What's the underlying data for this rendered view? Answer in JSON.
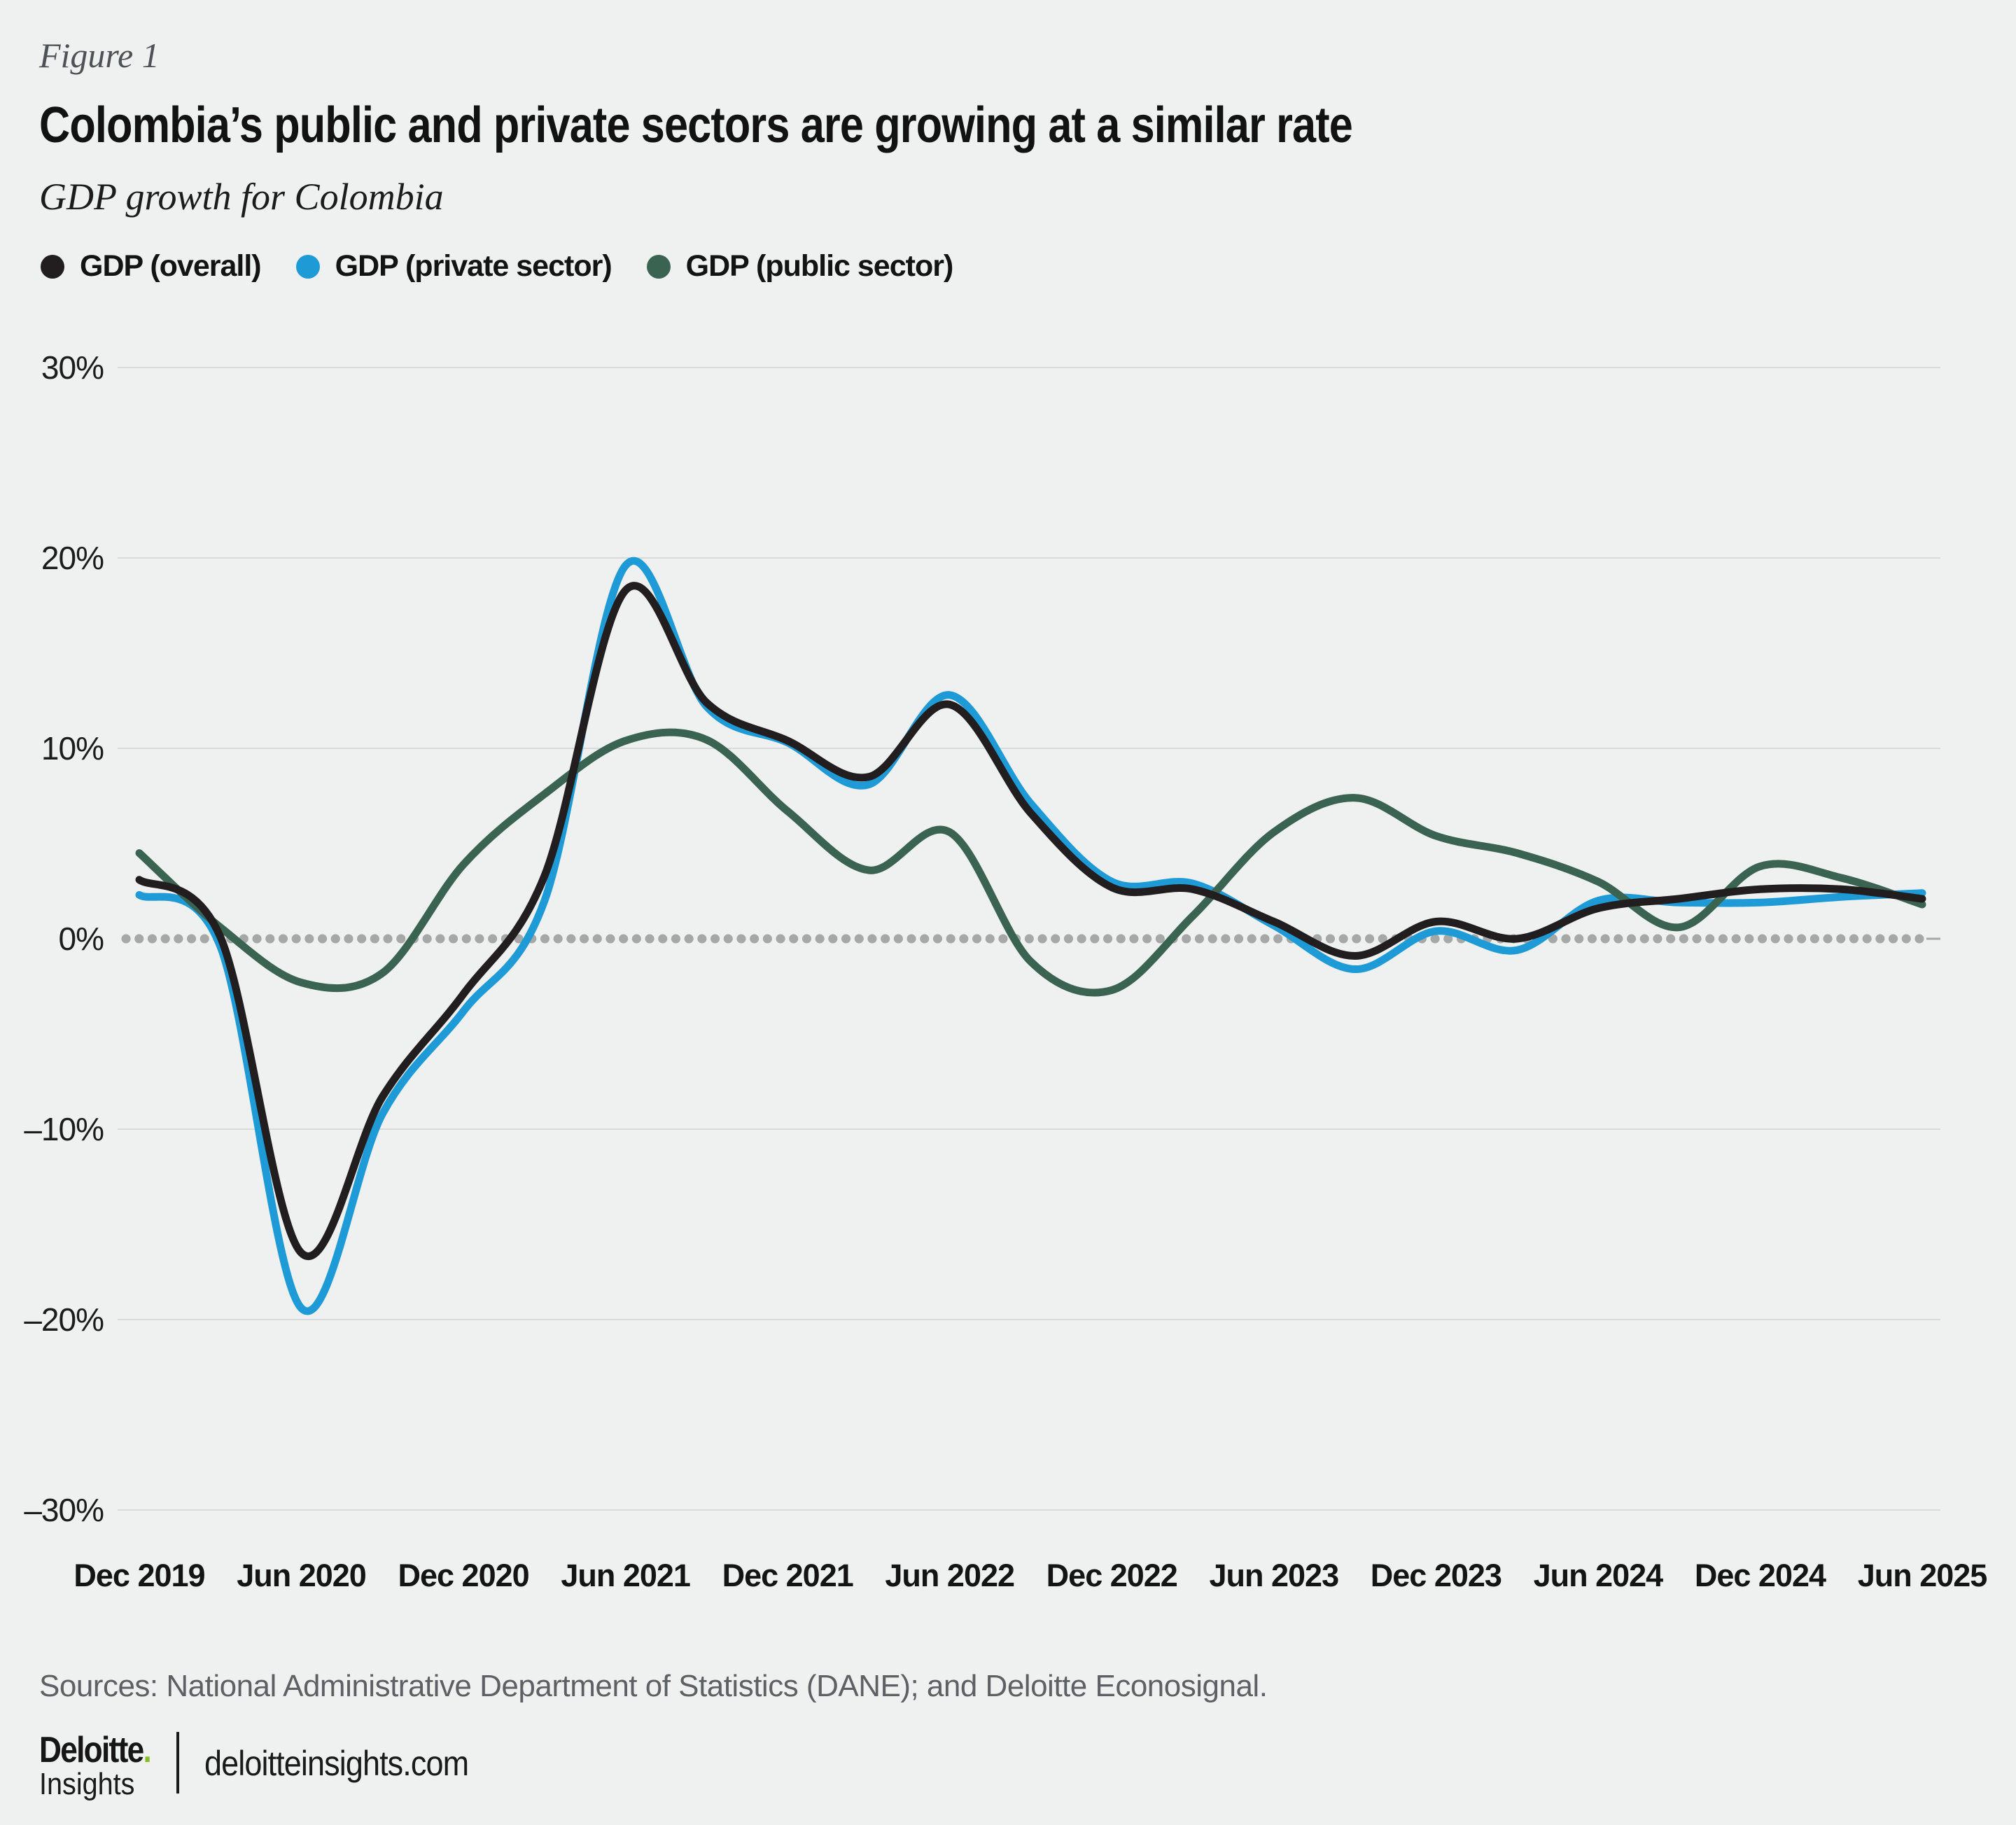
{
  "figure_label": "Figure 1",
  "title": "Colombia’s public and private sectors are growing at a similar rate",
  "subtitle": "GDP growth for Colombia",
  "sources": "Sources: National Administrative Department of Statistics (DANE); and Deloitte Econosignal.",
  "footer": {
    "brand": "Deloitte",
    "brand_dot": ".",
    "brand_sub": "Insights",
    "site": "deloitteinsights.com"
  },
  "colors": {
    "background": "#EFF1F0",
    "overall": "#221E1F",
    "private": "#1E9BD7",
    "public": "#3A6351",
    "grid": "#D9DBDA",
    "zero_dots": "#A6A8A8",
    "axis_text": "#1C1C1C",
    "deloitte_green": "#86BC25"
  },
  "chart_data": {
    "type": "line",
    "title": "GDP growth for Colombia",
    "x": [
      "Dec 2019",
      "Mar 2020",
      "Jun 2020",
      "Sep 2020",
      "Dec 2020",
      "Mar 2021",
      "Jun 2021",
      "Sep 2021",
      "Dec 2021",
      "Mar 2022",
      "Jun 2022",
      "Sep 2022",
      "Dec 2022",
      "Mar 2023",
      "Jun 2023",
      "Sep 2023",
      "Dec 2023",
      "Mar 2024",
      "Jun 2024",
      "Sep 2024",
      "Dec 2024",
      "Mar 2025",
      "Jun 2025"
    ],
    "series": [
      {
        "name": "GDP (overall)",
        "color": "#221E1F",
        "values": [
          3.1,
          0.1,
          -16.5,
          -8.3,
          -2.9,
          3.3,
          18.3,
          12.4,
          10.4,
          8.5,
          12.3,
          6.6,
          2.7,
          2.6,
          0.9,
          -0.9,
          0.9,
          0.0,
          1.6,
          2.1,
          2.6,
          2.6,
          2.1
        ]
      },
      {
        "name": "GDP (private sector)",
        "color": "#1E9BD7",
        "values": [
          2.3,
          -0.4,
          -19.4,
          -9.2,
          -3.8,
          2.0,
          19.6,
          12.2,
          10.3,
          8.1,
          12.8,
          7.1,
          3.0,
          2.9,
          0.7,
          -1.6,
          0.4,
          -0.6,
          2.0,
          1.9,
          1.9,
          2.2,
          2.4
        ]
      },
      {
        "name": "GDP (public sector)",
        "color": "#3A6351",
        "values": [
          4.5,
          0.6,
          -2.3,
          -1.8,
          3.9,
          7.6,
          10.4,
          10.45,
          6.7,
          3.6,
          5.6,
          -1.2,
          -2.7,
          1.2,
          5.6,
          7.4,
          5.4,
          4.5,
          3.0,
          0.6,
          3.8,
          3.2,
          1.8
        ]
      }
    ],
    "ylim": [
      -30,
      30
    ],
    "yticks": [
      30,
      20,
      10,
      0,
      -10,
      -20,
      -30
    ],
    "ytick_suffix": "%",
    "xtick_every": 2,
    "grid": true,
    "zero_line": "dotted",
    "legend_position": "top"
  }
}
